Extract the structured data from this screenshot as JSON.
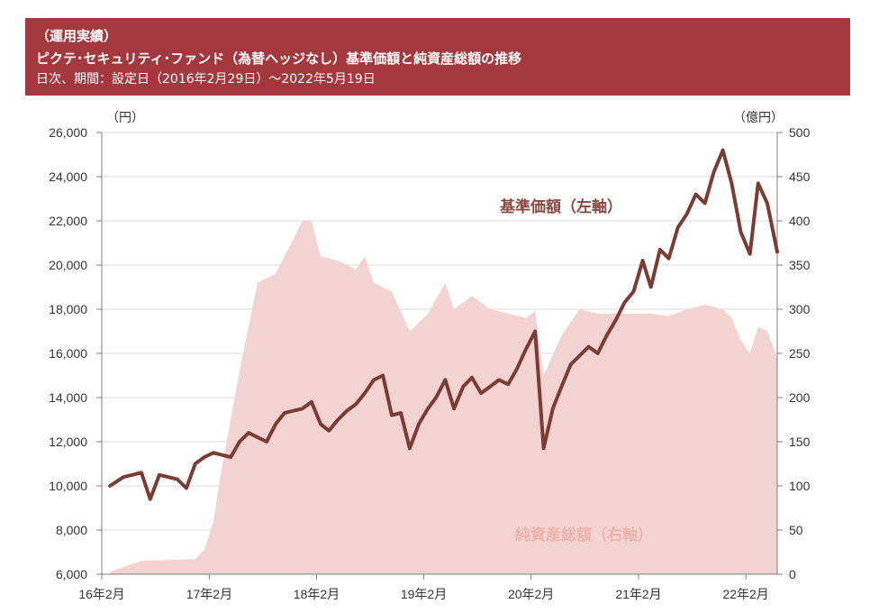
{
  "header": {
    "line1": "（運用実績）",
    "line2": "ピクテ･セキュリティ･ファンド（為替ヘッジなし）基準価額と純資産総額の推移",
    "line3": "日次、期間：設定日（2016年2月29日）～2022年5月19日"
  },
  "colors": {
    "header_bg": "#a3393e",
    "nav_line": "#7a3c34",
    "aum_area": "#f2d3d1",
    "nav_label": "#8a4a40",
    "aum_label": "#eab3ad"
  },
  "chart_data": {
    "type": "line",
    "x_tick_labels": [
      "16年2月",
      "17年2月",
      "18年2月",
      "19年2月",
      "20年2月",
      "21年2月",
      "22年2月"
    ],
    "left_axis": {
      "unit": "（円）",
      "ylim": [
        6000,
        26000
      ],
      "tick_labels": [
        "6,000",
        "8,000",
        "10,000",
        "12,000",
        "14,000",
        "16,000",
        "18,000",
        "20,000",
        "22,000",
        "24,000",
        "26,000"
      ]
    },
    "right_axis": {
      "unit": "（億円）",
      "ylim": [
        0,
        500
      ],
      "tick_labels": [
        "0",
        "50",
        "100",
        "150",
        "200",
        "250",
        "300",
        "350",
        "400",
        "450",
        "500"
      ]
    },
    "grid": true,
    "series": [
      {
        "name": "基準価額（左軸）",
        "kind": "line",
        "axis": "left",
        "points": [
          [
            "2016-02-29",
            10000
          ],
          [
            "2016-04",
            10400
          ],
          [
            "2016-06",
            10600
          ],
          [
            "2016-07",
            9400
          ],
          [
            "2016-08",
            10500
          ],
          [
            "2016-10",
            10300
          ],
          [
            "2016-11",
            9900
          ],
          [
            "2016-12",
            11000
          ],
          [
            "2017-01",
            11300
          ],
          [
            "2017-02",
            11500
          ],
          [
            "2017-04",
            11300
          ],
          [
            "2017-05",
            12000
          ],
          [
            "2017-06",
            12400
          ],
          [
            "2017-08",
            12000
          ],
          [
            "2017-09",
            12800
          ],
          [
            "2017-10",
            13300
          ],
          [
            "2017-12",
            13500
          ],
          [
            "2018-01",
            13800
          ],
          [
            "2018-02",
            12800
          ],
          [
            "2018-03",
            12500
          ],
          [
            "2018-04",
            13000
          ],
          [
            "2018-05",
            13400
          ],
          [
            "2018-06",
            13700
          ],
          [
            "2018-07",
            14200
          ],
          [
            "2018-08",
            14800
          ],
          [
            "2018-09",
            15000
          ],
          [
            "2018-10",
            13200
          ],
          [
            "2018-11",
            13300
          ],
          [
            "2018-12",
            11700
          ],
          [
            "2019-01",
            12800
          ],
          [
            "2019-02",
            13500
          ],
          [
            "2019-03",
            14000
          ],
          [
            "2019-04",
            14800
          ],
          [
            "2019-05",
            13500
          ],
          [
            "2019-06",
            14500
          ],
          [
            "2019-07",
            14900
          ],
          [
            "2019-08",
            14200
          ],
          [
            "2019-09",
            14500
          ],
          [
            "2019-10",
            14800
          ],
          [
            "2019-11",
            14600
          ],
          [
            "2019-12",
            15300
          ],
          [
            "2020-01",
            16200
          ],
          [
            "2020-02",
            17000
          ],
          [
            "2020-03",
            11700
          ],
          [
            "2020-04",
            13500
          ],
          [
            "2020-05",
            14500
          ],
          [
            "2020-06",
            15500
          ],
          [
            "2020-08",
            16300
          ],
          [
            "2020-09",
            16000
          ],
          [
            "2020-10",
            16800
          ],
          [
            "2020-11",
            17500
          ],
          [
            "2020-12",
            18300
          ],
          [
            "2021-01",
            18800
          ],
          [
            "2021-02",
            20200
          ],
          [
            "2021-03",
            19000
          ],
          [
            "2021-04",
            20700
          ],
          [
            "2021-05",
            20300
          ],
          [
            "2021-06",
            21700
          ],
          [
            "2021-07",
            22300
          ],
          [
            "2021-08",
            23200
          ],
          [
            "2021-09",
            22800
          ],
          [
            "2021-10",
            24200
          ],
          [
            "2021-11",
            25200
          ],
          [
            "2021-12",
            23700
          ],
          [
            "2022-01",
            21500
          ],
          [
            "2022-02",
            20500
          ],
          [
            "2022-03",
            23700
          ],
          [
            "2022-04",
            22800
          ],
          [
            "2022-05-19",
            20600
          ]
        ]
      },
      {
        "name": "純資産総額（右軸）",
        "kind": "area",
        "axis": "right",
        "points": [
          [
            "2016-02-29",
            3
          ],
          [
            "2016-06",
            15
          ],
          [
            "2016-09",
            16
          ],
          [
            "2016-12",
            17
          ],
          [
            "2017-01",
            28
          ],
          [
            "2017-02",
            60
          ],
          [
            "2017-03",
            120
          ],
          [
            "2017-05",
            230
          ],
          [
            "2017-07",
            330
          ],
          [
            "2017-09",
            340
          ],
          [
            "2017-11",
            380
          ],
          [
            "2017-12",
            400
          ],
          [
            "2018-01",
            400
          ],
          [
            "2018-02",
            360
          ],
          [
            "2018-04",
            355
          ],
          [
            "2018-06",
            345
          ],
          [
            "2018-07",
            360
          ],
          [
            "2018-08",
            330
          ],
          [
            "2018-10",
            320
          ],
          [
            "2018-12",
            275
          ],
          [
            "2019-02",
            295
          ],
          [
            "2019-04",
            330
          ],
          [
            "2019-05",
            300
          ],
          [
            "2019-07",
            315
          ],
          [
            "2019-09",
            300
          ],
          [
            "2019-11",
            295
          ],
          [
            "2020-01",
            290
          ],
          [
            "2020-02",
            298
          ],
          [
            "2020-03",
            225
          ],
          [
            "2020-05",
            270
          ],
          [
            "2020-07",
            300
          ],
          [
            "2020-09",
            295
          ],
          [
            "2020-11",
            295
          ],
          [
            "2021-01",
            295
          ],
          [
            "2021-03",
            295
          ],
          [
            "2021-05",
            292
          ],
          [
            "2021-07",
            300
          ],
          [
            "2021-09",
            305
          ],
          [
            "2021-11",
            300
          ],
          [
            "2021-12",
            290
          ],
          [
            "2022-01",
            265
          ],
          [
            "2022-02",
            250
          ],
          [
            "2022-03",
            280
          ],
          [
            "2022-04",
            275
          ],
          [
            "2022-05-19",
            245
          ]
        ]
      }
    ]
  }
}
